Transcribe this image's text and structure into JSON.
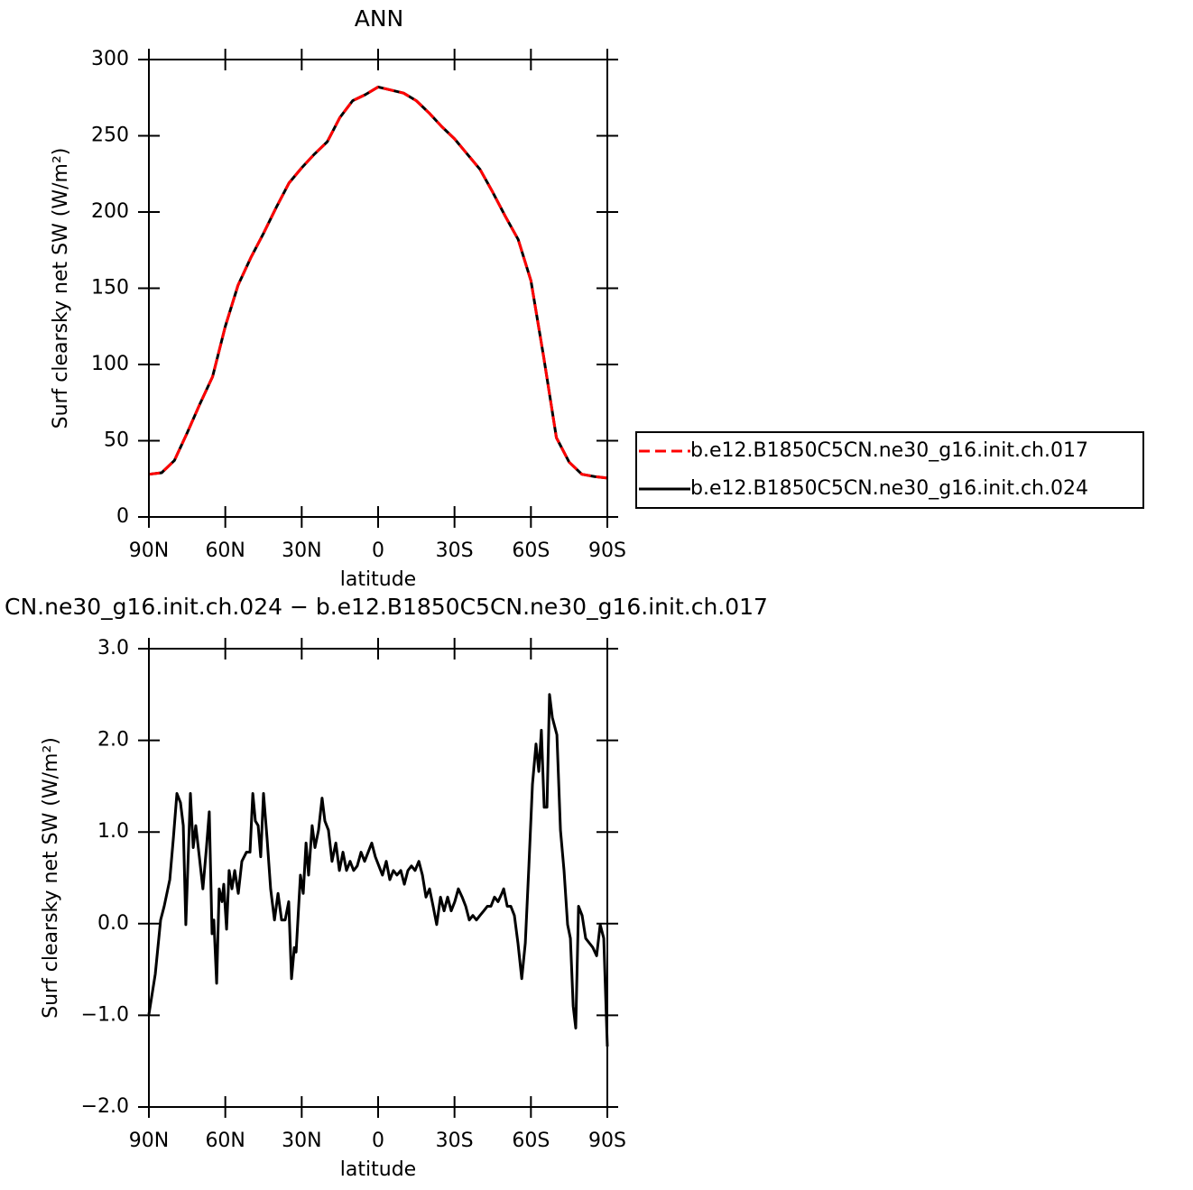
{
  "chart_data": [
    {
      "type": "line",
      "title": "ANN",
      "xlabel": "latitude",
      "ylabel": "Surf clearsky net SW (W/m²)",
      "x": [
        90,
        85,
        80,
        75,
        70,
        65,
        60,
        55,
        50,
        45,
        40,
        35,
        30,
        25,
        20,
        15,
        10,
        5,
        0,
        -5,
        -10,
        -15,
        -20,
        -25,
        -30,
        -35,
        -40,
        -45,
        -50,
        -55,
        -60,
        -65,
        -70,
        -75,
        -80,
        -85,
        -90
      ],
      "series": [
        {
          "name": "b.e12.B1850C5CN.ne30_g16.init.ch.017",
          "color": "#ff0000",
          "style": "dashed",
          "values": [
            28,
            29,
            37,
            55,
            74,
            92,
            125,
            152,
            170,
            186,
            203,
            219,
            229,
            238,
            246,
            262,
            273,
            277,
            282,
            280,
            278,
            273,
            265,
            256,
            248,
            238,
            228,
            213,
            197,
            182,
            155,
            105,
            52,
            36,
            28,
            26.5,
            25.5
          ]
        },
        {
          "name": "b.e12.B1850C5CN.ne30_g16.init.ch.024",
          "color": "#000000",
          "style": "solid",
          "values": [
            28,
            29,
            37,
            55,
            74,
            92,
            125,
            152,
            170,
            186,
            203,
            219,
            229,
            238,
            246,
            262,
            273,
            277,
            282,
            280,
            278,
            273,
            265,
            256,
            248,
            238,
            228,
            213,
            197,
            182,
            155,
            105,
            52,
            36,
            28,
            26.5,
            25.5
          ]
        }
      ],
      "xlim": [
        90,
        -90
      ],
      "xticks": [
        {
          "value": 90,
          "label": "90N"
        },
        {
          "value": 60,
          "label": "60N"
        },
        {
          "value": 30,
          "label": "30N"
        },
        0,
        {
          "value": -30,
          "label": "30S"
        },
        {
          "value": -60,
          "label": "60S"
        },
        {
          "value": -90,
          "label": "90S"
        }
      ],
      "ylim": [
        0,
        300
      ],
      "yticks": [
        0,
        50,
        100,
        150,
        200,
        250,
        300
      ],
      "legend": "right"
    },
    {
      "type": "line",
      "title": "CN.ne30_g16.init.ch.024 − b.e12.B1850C5CN.ne30_g16.init.ch.017",
      "xlabel": "latitude",
      "ylabel": "Surf clearsky net SW (W/m²)",
      "x": [
        90,
        87.5,
        85.4,
        84.0,
        81.8,
        80.4,
        79.0,
        77.6,
        76.5,
        75.5,
        73.7,
        72.6,
        71.6,
        70.2,
        68.8,
        67.4,
        66.3,
        65.2,
        64.5,
        63.4,
        62.4,
        61.3,
        60.6,
        59.5,
        58.5,
        57.4,
        56.3,
        54.9,
        53.5,
        51.7,
        50.3,
        49.2,
        48.2,
        47.1,
        46.1,
        45.0,
        43.6,
        42.2,
        40.7,
        39.3,
        37.9,
        36.5,
        35.1,
        34.0,
        32.9,
        32.2,
        30.5,
        29.4,
        28.3,
        27.3,
        25.9,
        24.8,
        23.4,
        22.0,
        20.9,
        19.5,
        18.1,
        16.6,
        15.2,
        13.8,
        12.4,
        11.0,
        9.6,
        8.2,
        6.7,
        5.3,
        3.9,
        2.5,
        1.1,
        -0.3,
        -1.7,
        -3.2,
        -4.6,
        -6.0,
        -7.4,
        -8.9,
        -10.3,
        -11.7,
        -13.1,
        -14.5,
        -16.0,
        -17.4,
        -18.8,
        -20.2,
        -21.6,
        -23.0,
        -24.5,
        -25.9,
        -27.3,
        -28.7,
        -30.1,
        -31.5,
        -33.0,
        -34.4,
        -35.8,
        -37.2,
        -38.6,
        -40.0,
        -41.5,
        -42.9,
        -44.3,
        -45.7,
        -47.1,
        -48.6,
        -49.3,
        -50.7,
        -52.1,
        -53.5,
        -54.9,
        -56.4,
        -57.8,
        -59.2,
        -60.6,
        -62.0,
        -63.1,
        -64.1,
        -65.2,
        -66.3,
        -67.3,
        -68.4,
        -70.2,
        -71.6,
        -73.0,
        -74.4,
        -75.5,
        -76.6,
        -77.6,
        -78.7,
        -80.1,
        -81.5,
        -82.9,
        -84.3,
        -85.8,
        -87.2,
        -88.6,
        -90.0
      ],
      "series": [
        {
          "color": "#000000",
          "style": "solid",
          "values": [
            -0.99,
            -0.55,
            0.04,
            0.19,
            0.48,
            0.93,
            1.42,
            1.32,
            1.07,
            -0.01,
            1.42,
            0.83,
            1.07,
            0.73,
            0.38,
            0.83,
            1.22,
            -0.11,
            0.04,
            -0.65,
            0.38,
            0.24,
            0.43,
            -0.06,
            0.58,
            0.38,
            0.58,
            0.33,
            0.68,
            0.78,
            0.78,
            1.42,
            1.12,
            1.07,
            0.73,
            1.42,
            0.93,
            0.38,
            0.04,
            0.33,
            0.04,
            0.04,
            0.24,
            -0.6,
            -0.26,
            -0.31,
            0.53,
            0.33,
            0.88,
            0.53,
            1.07,
            0.83,
            1.02,
            1.37,
            1.12,
            1.02,
            0.68,
            0.88,
            0.58,
            0.78,
            0.58,
            0.68,
            0.58,
            0.63,
            0.78,
            0.68,
            0.78,
            0.88,
            0.73,
            0.63,
            0.53,
            0.68,
            0.48,
            0.58,
            0.53,
            0.58,
            0.43,
            0.58,
            0.63,
            0.58,
            0.68,
            0.53,
            0.29,
            0.38,
            0.19,
            -0.01,
            0.29,
            0.14,
            0.29,
            0.14,
            0.24,
            0.38,
            0.29,
            0.19,
            0.04,
            0.09,
            0.04,
            0.09,
            0.14,
            0.19,
            0.19,
            0.29,
            0.24,
            0.33,
            0.38,
            0.19,
            0.19,
            0.09,
            -0.21,
            -0.6,
            -0.21,
            0.63,
            1.52,
            1.96,
            1.66,
            2.11,
            1.27,
            1.27,
            2.5,
            2.25,
            2.06,
            1.02,
            0.58,
            -0.01,
            -0.16,
            -0.9,
            -1.14,
            0.19,
            0.09,
            -0.16,
            -0.21,
            -0.26,
            -0.35,
            -0.01,
            -0.16,
            -1.34
          ]
        }
      ],
      "xlim": [
        90,
        -90
      ],
      "xticks": [
        {
          "value": 90,
          "label": "90N"
        },
        {
          "value": 60,
          "label": "60N"
        },
        {
          "value": 30,
          "label": "30N"
        },
        0,
        {
          "value": -30,
          "label": "30S"
        },
        {
          "value": -60,
          "label": "60S"
        },
        {
          "value": -90,
          "label": "90S"
        }
      ],
      "ylim": [
        -2,
        3
      ],
      "yticks": [
        {
          "value": -2,
          "label": "−2.0"
        },
        {
          "value": -1,
          "label": "−1.0"
        },
        {
          "value": 0,
          "label": "0.0"
        },
        {
          "value": 1,
          "label": "1.0"
        },
        {
          "value": 2,
          "label": "2.0"
        },
        {
          "value": 3,
          "label": "3.0"
        }
      ]
    }
  ]
}
